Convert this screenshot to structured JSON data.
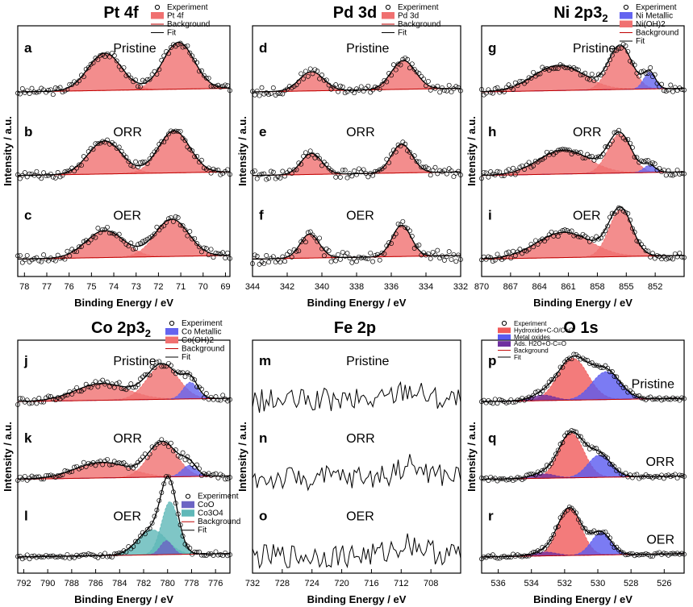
{
  "colors": {
    "pt": "#f07070",
    "pd": "#f07070",
    "ni_metal": "#6464f0",
    "ni_oh": "#f07070",
    "co_metal": "#6464f0",
    "co_oh": "#f07070",
    "coo": "#6c64c4",
    "co3o4": "#5fb8b8",
    "o_hyd": "#f05a5a",
    "o_met": "#5a5af0",
    "o_ads": "#7030a0",
    "background": "#c00000",
    "fit": "#000000"
  },
  "chart_data": [
    {
      "id": "pt",
      "type": "line",
      "title": "Pt 4f",
      "xlabel": "Binding Energy / eV",
      "ylabel": "Intensity / a.u.",
      "xlim": [
        78.3,
        68.8
      ],
      "ticks": [
        78,
        77,
        76,
        75,
        74,
        73,
        72,
        71,
        70,
        69
      ],
      "legend": [
        "Experiment",
        "Pt 4f",
        "Background",
        "Fit"
      ],
      "panels": [
        {
          "letter": "a",
          "label": "Pristine",
          "noise": 0.06,
          "peaks": [
            {
              "c": 74.4,
              "w": 0.75,
              "h": 0.62,
              "comp": 0
            },
            {
              "c": 71.1,
              "w": 0.7,
              "h": 0.78,
              "comp": 0
            }
          ]
        },
        {
          "letter": "b",
          "label": "ORR",
          "noise": 0.06,
          "peaks": [
            {
              "c": 74.4,
              "w": 0.75,
              "h": 0.55,
              "comp": 0
            },
            {
              "c": 71.3,
              "w": 0.7,
              "h": 0.7,
              "comp": 0
            }
          ]
        },
        {
          "letter": "c",
          "label": "OER",
          "noise": 0.07,
          "peaks": [
            {
              "c": 74.4,
              "w": 0.85,
              "h": 0.45,
              "comp": 0
            },
            {
              "c": 71.4,
              "w": 0.75,
              "h": 0.62,
              "comp": 0
            }
          ]
        }
      ]
    },
    {
      "id": "pd",
      "type": "line",
      "title": "Pd 3d",
      "xlabel": "Binding Energy / eV",
      "ylabel": "Intensity / a.u.",
      "xlim": [
        344,
        332
      ],
      "ticks": [
        344,
        342,
        340,
        338,
        336,
        334,
        332
      ],
      "legend": [
        "Experiment",
        "Pd 3d",
        "Background",
        "Fit"
      ],
      "panels": [
        {
          "letter": "d",
          "label": "Pristine",
          "noise": 0.07,
          "peaks": [
            {
              "c": 340.6,
              "w": 0.7,
              "h": 0.32,
              "comp": 0
            },
            {
              "c": 335.3,
              "w": 0.7,
              "h": 0.48,
              "comp": 0
            }
          ]
        },
        {
          "letter": "e",
          "label": "ORR",
          "noise": 0.08,
          "peaks": [
            {
              "c": 340.6,
              "w": 0.6,
              "h": 0.35,
              "comp": 0
            },
            {
              "c": 335.4,
              "w": 0.6,
              "h": 0.48,
              "comp": 0
            }
          ]
        },
        {
          "letter": "f",
          "label": "OER",
          "noise": 0.1,
          "peaks": [
            {
              "c": 340.7,
              "w": 0.55,
              "h": 0.4,
              "comp": 0
            },
            {
              "c": 335.4,
              "w": 0.55,
              "h": 0.52,
              "comp": 0
            }
          ]
        }
      ]
    },
    {
      "id": "ni",
      "type": "line",
      "title": "Ni 2p3/2",
      "xlabel": "Binding Energy / eV",
      "ylabel": "Intensity / a.u.",
      "xlim": [
        870,
        849
      ],
      "ticks": [
        870,
        867,
        864,
        861,
        858,
        855,
        852
      ],
      "legend": [
        "Experiment",
        "Ni Metallic",
        "Ni(OH)2",
        "Background",
        "Fit"
      ],
      "panels": [
        {
          "letter": "g",
          "label": "Pristine",
          "noise": 0.06,
          "peaks": [
            {
              "c": 862,
              "w": 2.6,
              "h": 0.42,
              "comp": 1
            },
            {
              "c": 855.6,
              "w": 1.2,
              "h": 0.72,
              "comp": 1
            },
            {
              "c": 852.6,
              "w": 0.6,
              "h": 0.28,
              "comp": 0
            }
          ]
        },
        {
          "letter": "h",
          "label": "ORR",
          "noise": 0.06,
          "peaks": [
            {
              "c": 861.5,
              "w": 2.6,
              "h": 0.4,
              "comp": 1
            },
            {
              "c": 855.7,
              "w": 1.2,
              "h": 0.65,
              "comp": 1
            },
            {
              "c": 852.6,
              "w": 0.6,
              "h": 0.12,
              "comp": 0
            }
          ]
        },
        {
          "letter": "i",
          "label": "OER",
          "noise": 0.06,
          "peaks": [
            {
              "c": 861.5,
              "w": 2.8,
              "h": 0.42,
              "comp": 1
            },
            {
              "c": 855.6,
              "w": 1.2,
              "h": 0.78,
              "comp": 1
            }
          ]
        }
      ]
    },
    {
      "id": "co",
      "type": "line",
      "title": "Co 2p3/2",
      "xlabel": "Binding Energy / eV",
      "ylabel": "Intensity / a.u.",
      "xlim": [
        792.5,
        774.8
      ],
      "ticks": [
        792,
        790,
        788,
        786,
        784,
        782,
        780,
        778,
        776
      ],
      "legend": [
        "Experiment",
        "Co Metallic",
        "Co(OH)2",
        "Background",
        "Fit"
      ],
      "legend2": [
        "Experiment",
        "CoO",
        "Co3O4",
        "Background",
        "Fit"
      ],
      "panels": [
        {
          "letter": "j",
          "label": "Pristine",
          "noise": 0.06,
          "peaks": [
            {
              "c": 785.5,
              "w": 2.2,
              "h": 0.3,
              "comp": 1
            },
            {
              "c": 780.4,
              "w": 1.3,
              "h": 0.62,
              "comp": 1
            },
            {
              "c": 778.1,
              "w": 0.6,
              "h": 0.3,
              "comp": 0
            }
          ]
        },
        {
          "letter": "k",
          "label": "ORR",
          "noise": 0.06,
          "peaks": [
            {
              "c": 785.5,
              "w": 2.2,
              "h": 0.28,
              "comp": 1
            },
            {
              "c": 780.4,
              "w": 1.2,
              "h": 0.62,
              "comp": 1
            },
            {
              "c": 778.2,
              "w": 0.6,
              "h": 0.2,
              "comp": 0
            }
          ]
        },
        {
          "letter": "l",
          "label": "OER",
          "noise": 0.04,
          "peaks": [
            {
              "c": 781.3,
              "w": 1.2,
              "h": 0.45,
              "comp": 3
            },
            {
              "c": 779.8,
              "w": 0.7,
              "h": 0.95,
              "comp": 3
            },
            {
              "c": 780.1,
              "w": 0.5,
              "h": 0.25,
              "comp": 2
            }
          ]
        }
      ]
    },
    {
      "id": "fe",
      "type": "line",
      "title": "Fe 2p",
      "xlabel": "Binding Energy / eV",
      "ylabel": "Intensity / a.u.",
      "xlim": [
        732,
        704
      ],
      "ticks": [
        732,
        728,
        724,
        720,
        716,
        712,
        708
      ],
      "legend": [],
      "panels": [
        {
          "letter": "m",
          "label": "Pristine",
          "noise": 0.22,
          "peaks": [
            {
              "c": 711,
              "w": 1.8,
              "h": 0.2,
              "comp": 0
            }
          ]
        },
        {
          "letter": "n",
          "label": "ORR",
          "noise": 0.22,
          "peaks": [
            {
              "c": 711,
              "w": 1.8,
              "h": 0.2,
              "comp": 0
            }
          ]
        },
        {
          "letter": "o",
          "label": "OER",
          "noise": 0.22,
          "peaks": [
            {
              "c": 711,
              "w": 1.8,
              "h": 0.2,
              "comp": 0
            }
          ]
        }
      ]
    },
    {
      "id": "o",
      "type": "line",
      "title": "O 1s",
      "xlabel": "Binding Energy / eV",
      "ylabel": "Intensity / a.u.",
      "xlim": [
        537,
        524.8
      ],
      "ticks": [
        536,
        534,
        532,
        530,
        528,
        526
      ],
      "legend": [
        "Experiment",
        "Hydroxide+C-O/C=C",
        "Metal oxides",
        "Ads. H2O+O-C=O",
        "Background",
        "Fit"
      ],
      "panels": [
        {
          "letter": "p",
          "label": "Pristine",
          "noise": 0.04,
          "peaks": [
            {
              "c": 531.5,
              "w": 0.9,
              "h": 0.75,
              "comp": 0
            },
            {
              "c": 529.5,
              "w": 0.85,
              "h": 0.5,
              "comp": 1
            },
            {
              "c": 533.3,
              "w": 0.7,
              "h": 0.1,
              "comp": 2
            }
          ]
        },
        {
          "letter": "q",
          "label": "ORR",
          "noise": 0.04,
          "peaks": [
            {
              "c": 531.6,
              "w": 0.75,
              "h": 0.8,
              "comp": 0
            },
            {
              "c": 529.9,
              "w": 0.7,
              "h": 0.4,
              "comp": 1
            },
            {
              "c": 533.3,
              "w": 0.7,
              "h": 0.08,
              "comp": 2
            }
          ]
        },
        {
          "letter": "r",
          "label": "OER",
          "noise": 0.04,
          "peaks": [
            {
              "c": 531.7,
              "w": 0.7,
              "h": 0.85,
              "comp": 0
            },
            {
              "c": 529.8,
              "w": 0.6,
              "h": 0.4,
              "comp": 1
            },
            {
              "c": 533.2,
              "w": 0.7,
              "h": 0.07,
              "comp": 2
            }
          ]
        }
      ]
    }
  ]
}
